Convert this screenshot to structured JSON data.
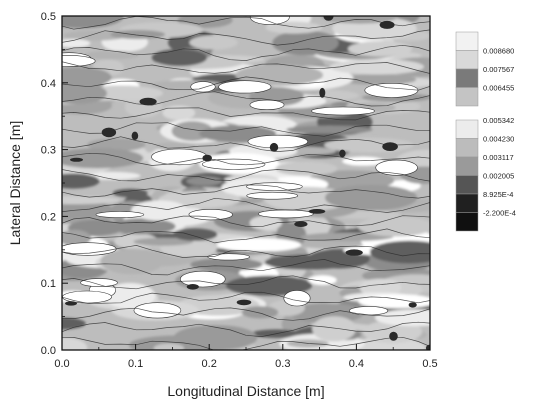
{
  "chart_data": {
    "type": "heatmap",
    "title": "",
    "xlabel": "Longitudinal Distance [m]",
    "ylabel": "Lateral Distance [m]",
    "xlim": [
      0.0,
      0.5
    ],
    "ylim": [
      0.0,
      0.5
    ],
    "x_ticks": [
      "0.0",
      "0.1",
      "0.2",
      "0.3",
      "0.4",
      "0.5"
    ],
    "y_ticks": [
      "0.0",
      "0.1",
      "0.2",
      "0.3",
      "0.4",
      "0.5"
    ],
    "grid": false,
    "legend_position": "right",
    "colormap": "grayscale",
    "legend": {
      "levels": [
        "0.008680",
        "0.007567",
        "0.006455",
        "0.005342",
        "0.004230",
        "0.003117",
        "0.002005",
        "8.925E-4",
        "-2.200E-4"
      ],
      "swatch_colors": [
        "#f2f2f2",
        "#d9d9d9",
        "#7a7a7a",
        "#c4c4c4",
        "#ececec",
        "#bcbcbc",
        "#9a9a9a",
        "#555555",
        "#202020",
        "#101010"
      ]
    }
  }
}
